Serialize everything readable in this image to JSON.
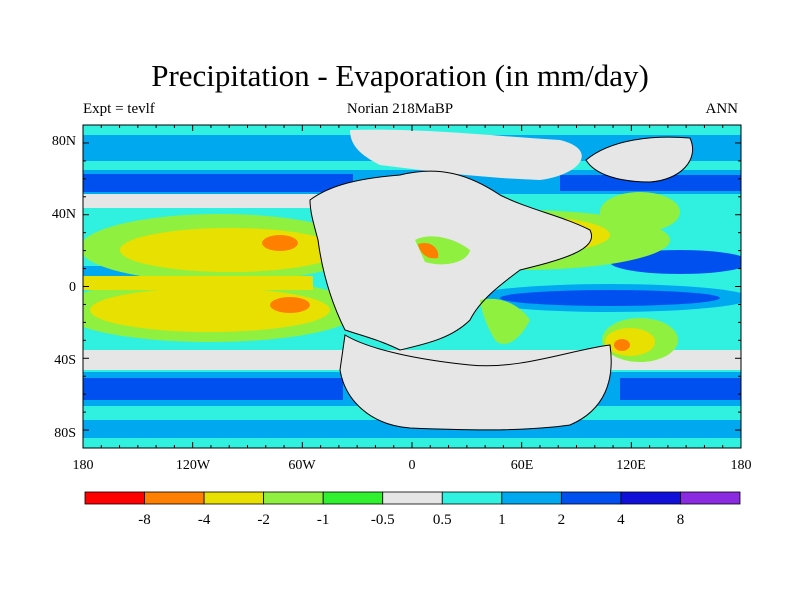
{
  "title": "Precipitation - Evaporation (in mm/day)",
  "subtitle_left": "Expt = tevlf",
  "subtitle_center": "Norian 218MaBP",
  "subtitle_right": "ANN",
  "lat_labels": [
    "80N",
    "40N",
    "0",
    "40S",
    "80S"
  ],
  "lon_labels": [
    "180",
    "120W",
    "60W",
    "0",
    "60E",
    "120E",
    "180"
  ],
  "colorbar": {
    "colors": [
      "#ff0000",
      "#ff8000",
      "#e8e000",
      "#90f040",
      "#30f030",
      "#e6e6e6",
      "#30f0e0",
      "#00a8f0",
      "#0050f0",
      "#1010d8",
      "#8a2be2"
    ],
    "labels": [
      "-8",
      "-4",
      "-2",
      "-1",
      "-0.5",
      "0.5",
      "1",
      "2",
      "4",
      "8"
    ]
  }
}
